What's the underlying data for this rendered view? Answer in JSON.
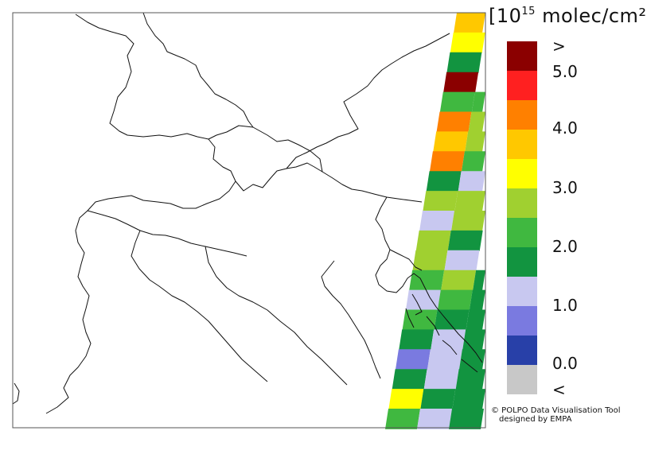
{
  "legend": {
    "unit_prefix": "[10",
    "unit_exponent": "15",
    "unit_suffix": " molec/cm²]",
    "tick_labels": [
      ">",
      "5.0",
      "4.0",
      "3.0",
      "2.0",
      "1.0",
      "0.0",
      "<"
    ],
    "colors": [
      "#8b0000",
      "#ff2020",
      "#ff8000",
      "#ffc800",
      "#ffff00",
      "#a0d030",
      "#40b840",
      "#129440",
      "#c8c8f0",
      "#7a7ae0",
      "#2840a8",
      "#c8c8c8"
    ]
  },
  "credit": {
    "line1": "© POLPO Data Visualisation Tool",
    "line2": "designed by EMPA"
  },
  "colors": {
    "map_border": "#111111",
    "frame": "#555555",
    "background": "#ffffff"
  }
}
